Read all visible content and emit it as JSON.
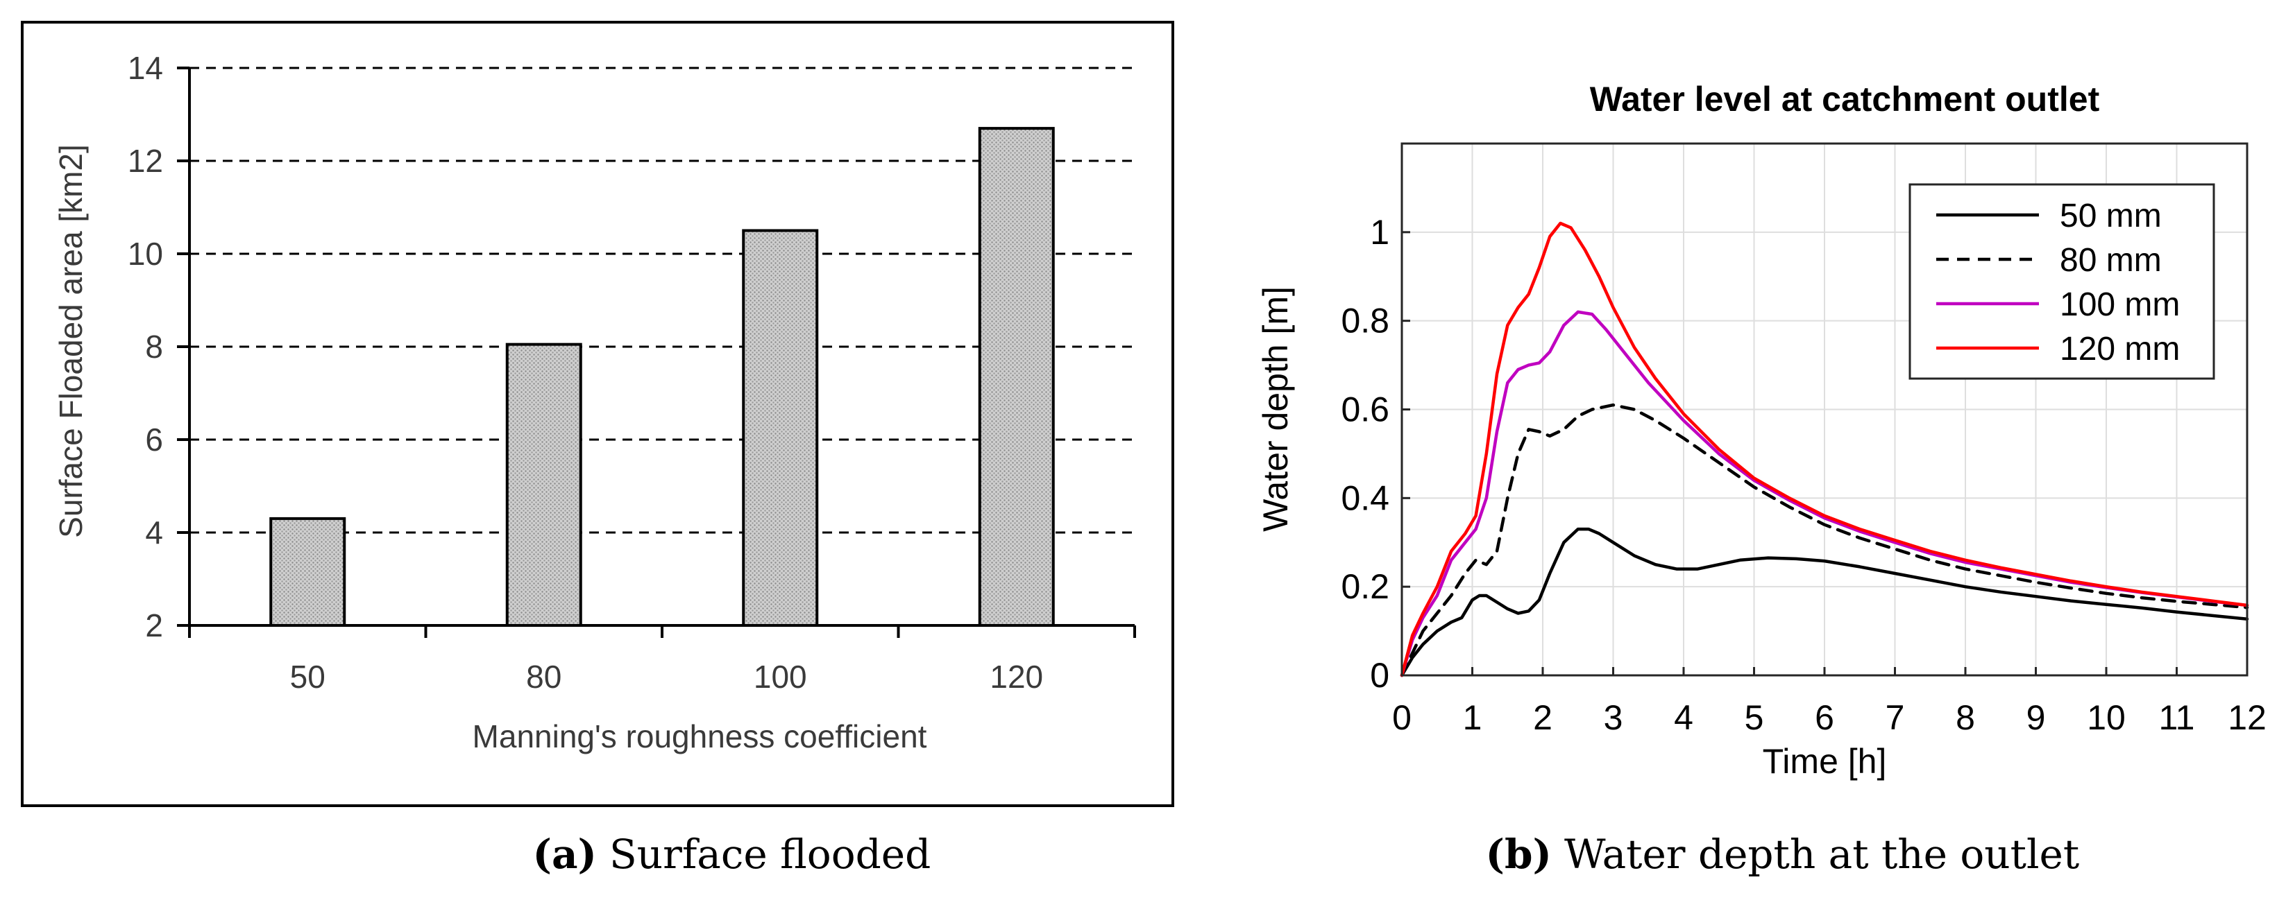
{
  "chart_data": [
    {
      "type": "bar",
      "title": "",
      "xlabel": "Manning's roughness coefficient",
      "ylabel": "Surface Floaded area [km2]",
      "categories": [
        "50",
        "80",
        "100",
        "120"
      ],
      "values": [
        4.3,
        8.05,
        10.5,
        12.7
      ],
      "ylim": [
        2,
        14
      ],
      "yticks": [
        2,
        4,
        6,
        8,
        10,
        12,
        14
      ],
      "grid": "dashed horizontal",
      "caption_label": "(a)",
      "caption_text": "Surface flooded",
      "colors": {
        "bar_fill": "#c8c8c8",
        "bar_edge": "#000000",
        "axis": "#000000",
        "text": "#3a3a3a"
      }
    },
    {
      "type": "line",
      "title": "Water level at catchment outlet",
      "xlabel": "Time [h]",
      "ylabel": "Water depth [m]",
      "xlim": [
        0,
        12
      ],
      "ylim": [
        0,
        1.2
      ],
      "xticks": [
        0,
        1,
        2,
        3,
        4,
        5,
        6,
        7,
        8,
        9,
        10,
        11,
        12
      ],
      "yticks": [
        0,
        0.2,
        0.4,
        0.6,
        0.8,
        1
      ],
      "ytick_labels": [
        "0",
        "0.2",
        "0.4",
        "0.6",
        "0.8",
        "1"
      ],
      "grid": true,
      "legend_position": "top-right",
      "caption_label": "(b)",
      "caption_text": "Water depth at the outlet",
      "series": [
        {
          "name": "50 mm",
          "color": "#000000",
          "dash": "solid",
          "x": [
            0,
            0.15,
            0.3,
            0.5,
            0.7,
            0.85,
            1.0,
            1.1,
            1.2,
            1.35,
            1.5,
            1.65,
            1.8,
            1.95,
            2.1,
            2.3,
            2.5,
            2.65,
            2.8,
            3.0,
            3.3,
            3.6,
            3.9,
            4.2,
            4.5,
            4.8,
            5.2,
            5.6,
            6.0,
            6.5,
            7.0,
            7.5,
            8.0,
            8.5,
            9.0,
            9.5,
            10.0,
            10.5,
            11.0,
            11.5,
            12.0
          ],
          "y": [
            0,
            0.04,
            0.07,
            0.1,
            0.12,
            0.13,
            0.17,
            0.18,
            0.18,
            0.165,
            0.15,
            0.14,
            0.145,
            0.17,
            0.23,
            0.3,
            0.33,
            0.33,
            0.32,
            0.3,
            0.27,
            0.25,
            0.24,
            0.24,
            0.25,
            0.26,
            0.265,
            0.263,
            0.258,
            0.245,
            0.23,
            0.215,
            0.2,
            0.188,
            0.178,
            0.168,
            0.16,
            0.152,
            0.143,
            0.135,
            0.127
          ]
        },
        {
          "name": "80 mm",
          "color": "#000000",
          "dash": "dashed",
          "x": [
            0,
            0.15,
            0.3,
            0.5,
            0.7,
            0.9,
            1.05,
            1.2,
            1.35,
            1.5,
            1.65,
            1.8,
            1.95,
            2.1,
            2.3,
            2.5,
            2.7,
            3.0,
            3.3,
            3.6,
            4.0,
            4.5,
            5.0,
            5.5,
            6.0,
            6.5,
            7.0,
            7.5,
            8.0,
            8.5,
            9.0,
            9.5,
            10.0,
            10.5,
            11.0,
            11.5,
            12.0
          ],
          "y": [
            0,
            0.05,
            0.1,
            0.14,
            0.18,
            0.23,
            0.26,
            0.25,
            0.28,
            0.4,
            0.5,
            0.555,
            0.55,
            0.54,
            0.555,
            0.585,
            0.6,
            0.61,
            0.6,
            0.575,
            0.535,
            0.48,
            0.425,
            0.38,
            0.34,
            0.31,
            0.285,
            0.26,
            0.24,
            0.225,
            0.21,
            0.197,
            0.185,
            0.175,
            0.167,
            0.16,
            0.153
          ]
        },
        {
          "name": "100 mm",
          "color": "#c000c0",
          "dash": "solid",
          "x": [
            0,
            0.15,
            0.3,
            0.5,
            0.7,
            0.9,
            1.05,
            1.2,
            1.35,
            1.5,
            1.65,
            1.8,
            1.95,
            2.1,
            2.3,
            2.5,
            2.7,
            2.9,
            3.2,
            3.5,
            4.0,
            4.5,
            5.0,
            5.5,
            6.0,
            6.5,
            7.0,
            7.5,
            8.0,
            8.5,
            9.0,
            9.5,
            10.0,
            10.5,
            11.0,
            11.5,
            12.0
          ],
          "y": [
            0,
            0.08,
            0.13,
            0.18,
            0.26,
            0.3,
            0.33,
            0.4,
            0.55,
            0.66,
            0.69,
            0.7,
            0.705,
            0.73,
            0.79,
            0.82,
            0.815,
            0.78,
            0.72,
            0.66,
            0.575,
            0.5,
            0.44,
            0.395,
            0.355,
            0.325,
            0.3,
            0.275,
            0.255,
            0.24,
            0.225,
            0.21,
            0.198,
            0.187,
            0.177,
            0.167,
            0.158
          ]
        },
        {
          "name": "120 mm",
          "color": "#ff0000",
          "dash": "solid",
          "x": [
            0,
            0.15,
            0.3,
            0.5,
            0.7,
            0.9,
            1.05,
            1.2,
            1.35,
            1.5,
            1.65,
            1.8,
            1.95,
            2.1,
            2.25,
            2.4,
            2.6,
            2.8,
            3.0,
            3.3,
            3.6,
            4.0,
            4.5,
            5.0,
            5.5,
            6.0,
            6.5,
            7.0,
            7.5,
            8.0,
            8.5,
            9.0,
            9.5,
            10.0,
            10.5,
            11.0,
            11.5,
            12.0
          ],
          "y": [
            0,
            0.09,
            0.14,
            0.2,
            0.28,
            0.32,
            0.36,
            0.5,
            0.68,
            0.79,
            0.83,
            0.86,
            0.92,
            0.99,
            1.02,
            1.01,
            0.96,
            0.9,
            0.83,
            0.74,
            0.67,
            0.59,
            0.51,
            0.445,
            0.4,
            0.36,
            0.33,
            0.305,
            0.28,
            0.26,
            0.243,
            0.228,
            0.213,
            0.2,
            0.188,
            0.178,
            0.168,
            0.158
          ]
        }
      ]
    }
  ]
}
